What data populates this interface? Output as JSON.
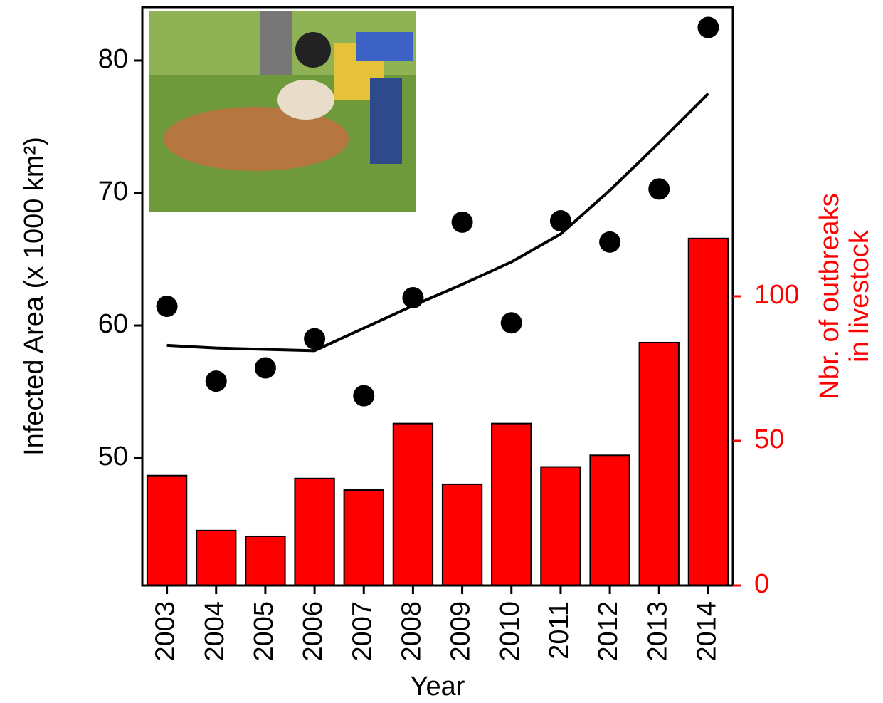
{
  "chart_data": {
    "type": "combo",
    "x_label": "Year",
    "y_label": "Infected Area (x 1000 km²)",
    "y2_label": [
      "Nbr. of outbreaks",
      "in livestock"
    ],
    "categories": [
      "2003",
      "2004",
      "2005",
      "2006",
      "2007",
      "2008",
      "2009",
      "2010",
      "2011",
      "2012",
      "2013",
      "2014"
    ],
    "series": [
      {
        "type": "bar",
        "axis": "y2",
        "color": "#ff0000",
        "values": [
          38,
          19,
          17,
          37,
          33,
          56,
          35,
          56,
          41,
          45,
          84,
          120
        ]
      },
      {
        "type": "scatter",
        "color": "#000000",
        "values": [
          61.45,
          55.8,
          56.8,
          59.0,
          54.7,
          62.1,
          67.8,
          60.2,
          67.9,
          66.3,
          70.3,
          82.5
        ]
      },
      {
        "type": "line",
        "color": "#000000",
        "values": [
          58.5,
          58.3,
          58.2,
          58.1,
          59.8,
          61.5,
          63.1,
          64.8,
          66.9,
          70.2,
          73.8,
          77.5
        ]
      }
    ],
    "ylim": [
      40.38,
      84.03
    ],
    "yticks": [
      50,
      60,
      70,
      80
    ],
    "y2lim": [
      0,
      200
    ],
    "y2ticks": [
      0,
      50,
      100
    ],
    "y2_color": "#ff0000"
  }
}
